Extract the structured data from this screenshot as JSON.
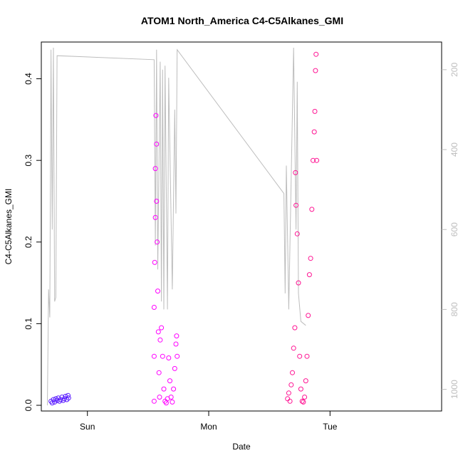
{
  "chart_data": {
    "type": "scatter",
    "title": "ATOM1 North_America C4-C5Alkanes_GMI",
    "xlabel": "Date",
    "ylabel": "C4-C5Alkanes_GMI",
    "x_ticks": [
      "Sun",
      "Mon",
      "Tue"
    ],
    "y_ticks": [
      "0.0",
      "0.1",
      "0.2",
      "0.3",
      "0.4"
    ],
    "y_range": [
      0.0,
      0.445
    ],
    "x_range_days": [
      -0.38,
      2.92
    ],
    "right_axis": {
      "ticks": [
        "200",
        "400",
        "600",
        "800",
        "1000"
      ],
      "range": [
        1040,
        145
      ],
      "color": "#bdbdbd"
    },
    "grid": false,
    "legend": "none",
    "colors": {
      "early": "#5a1cff",
      "middle": "#ff00ff",
      "late": "#ff1493",
      "pressure_line": "#bdbdbd"
    },
    "series": [
      {
        "color": "#5a1cff",
        "values": [
          [
            -0.3,
            0.005
          ],
          [
            -0.29,
            0.003
          ],
          [
            -0.28,
            0.007
          ],
          [
            -0.27,
            0.004
          ],
          [
            -0.26,
            0.008
          ],
          [
            -0.25,
            0.006
          ],
          [
            -0.24,
            0.009
          ],
          [
            -0.23,
            0.005
          ],
          [
            -0.22,
            0.007
          ],
          [
            -0.21,
            0.01
          ],
          [
            -0.2,
            0.006
          ],
          [
            -0.19,
            0.008
          ],
          [
            -0.18,
            0.011
          ],
          [
            -0.17,
            0.007
          ],
          [
            -0.16,
            0.012
          ],
          [
            -0.155,
            0.009
          ]
        ]
      },
      {
        "color": "#ff00ff",
        "values": [
          [
            0.55,
            0.005
          ],
          [
            0.55,
            0.06
          ],
          [
            0.55,
            0.12
          ],
          [
            0.555,
            0.175
          ],
          [
            0.56,
            0.23
          ],
          [
            0.56,
            0.29
          ],
          [
            0.565,
            0.355
          ],
          [
            0.57,
            0.32
          ],
          [
            0.57,
            0.25
          ],
          [
            0.575,
            0.2
          ],
          [
            0.58,
            0.14
          ],
          [
            0.585,
            0.09
          ],
          [
            0.59,
            0.04
          ],
          [
            0.595,
            0.01
          ],
          [
            0.6,
            0.08
          ],
          [
            0.61,
            0.095
          ],
          [
            0.62,
            0.06
          ],
          [
            0.63,
            0.02
          ],
          [
            0.64,
            0.005
          ],
          [
            0.65,
            0.003
          ],
          [
            0.66,
            0.008
          ],
          [
            0.67,
            0.058
          ],
          [
            0.68,
            0.03
          ],
          [
            0.69,
            0.01
          ],
          [
            0.7,
            0.004
          ],
          [
            0.71,
            0.02
          ],
          [
            0.72,
            0.045
          ],
          [
            0.73,
            0.075
          ],
          [
            0.735,
            0.085
          ],
          [
            0.74,
            0.06
          ]
        ]
      },
      {
        "color": "#ff1493",
        "values": [
          [
            1.65,
            0.008
          ],
          [
            1.66,
            0.015
          ],
          [
            1.67,
            0.005
          ],
          [
            1.68,
            0.025
          ],
          [
            1.69,
            0.04
          ],
          [
            1.7,
            0.07
          ],
          [
            1.71,
            0.095
          ],
          [
            1.715,
            0.285
          ],
          [
            1.72,
            0.245
          ],
          [
            1.73,
            0.21
          ],
          [
            1.74,
            0.15
          ],
          [
            1.75,
            0.06
          ],
          [
            1.76,
            0.02
          ],
          [
            1.77,
            0.005
          ],
          [
            1.78,
            0.004
          ],
          [
            1.79,
            0.01
          ],
          [
            1.8,
            0.03
          ],
          [
            1.81,
            0.06
          ],
          [
            1.82,
            0.11
          ],
          [
            1.83,
            0.16
          ],
          [
            1.84,
            0.18
          ],
          [
            1.85,
            0.24
          ],
          [
            1.86,
            0.3
          ],
          [
            1.87,
            0.335
          ],
          [
            1.875,
            0.36
          ],
          [
            1.88,
            0.41
          ],
          [
            1.885,
            0.43
          ],
          [
            1.89,
            0.3
          ]
        ]
      }
    ],
    "pressure_line": [
      [
        -0.33,
        1040
      ],
      [
        -0.32,
        750
      ],
      [
        -0.31,
        820
      ],
      [
        -0.3,
        150
      ],
      [
        -0.29,
        600
      ],
      [
        -0.28,
        145
      ],
      [
        -0.27,
        780
      ],
      [
        -0.26,
        770
      ],
      [
        -0.25,
        165
      ],
      [
        0.55,
        175
      ],
      [
        0.56,
        640
      ],
      [
        0.57,
        150
      ],
      [
        0.58,
        700
      ],
      [
        0.6,
        180
      ],
      [
        0.61,
        780
      ],
      [
        0.62,
        200
      ],
      [
        0.63,
        800
      ],
      [
        0.64,
        190
      ],
      [
        0.66,
        800
      ],
      [
        0.67,
        220
      ],
      [
        0.7,
        750
      ],
      [
        0.72,
        300
      ],
      [
        0.73,
        560
      ],
      [
        0.74,
        150
      ],
      [
        1.62,
        510
      ],
      [
        1.63,
        760
      ],
      [
        1.64,
        440
      ],
      [
        1.66,
        800
      ],
      [
        1.7,
        145
      ],
      [
        1.72,
        600
      ],
      [
        1.73,
        230
      ],
      [
        1.74,
        760
      ],
      [
        1.76,
        830
      ],
      [
        1.8,
        840
      ]
    ]
  }
}
